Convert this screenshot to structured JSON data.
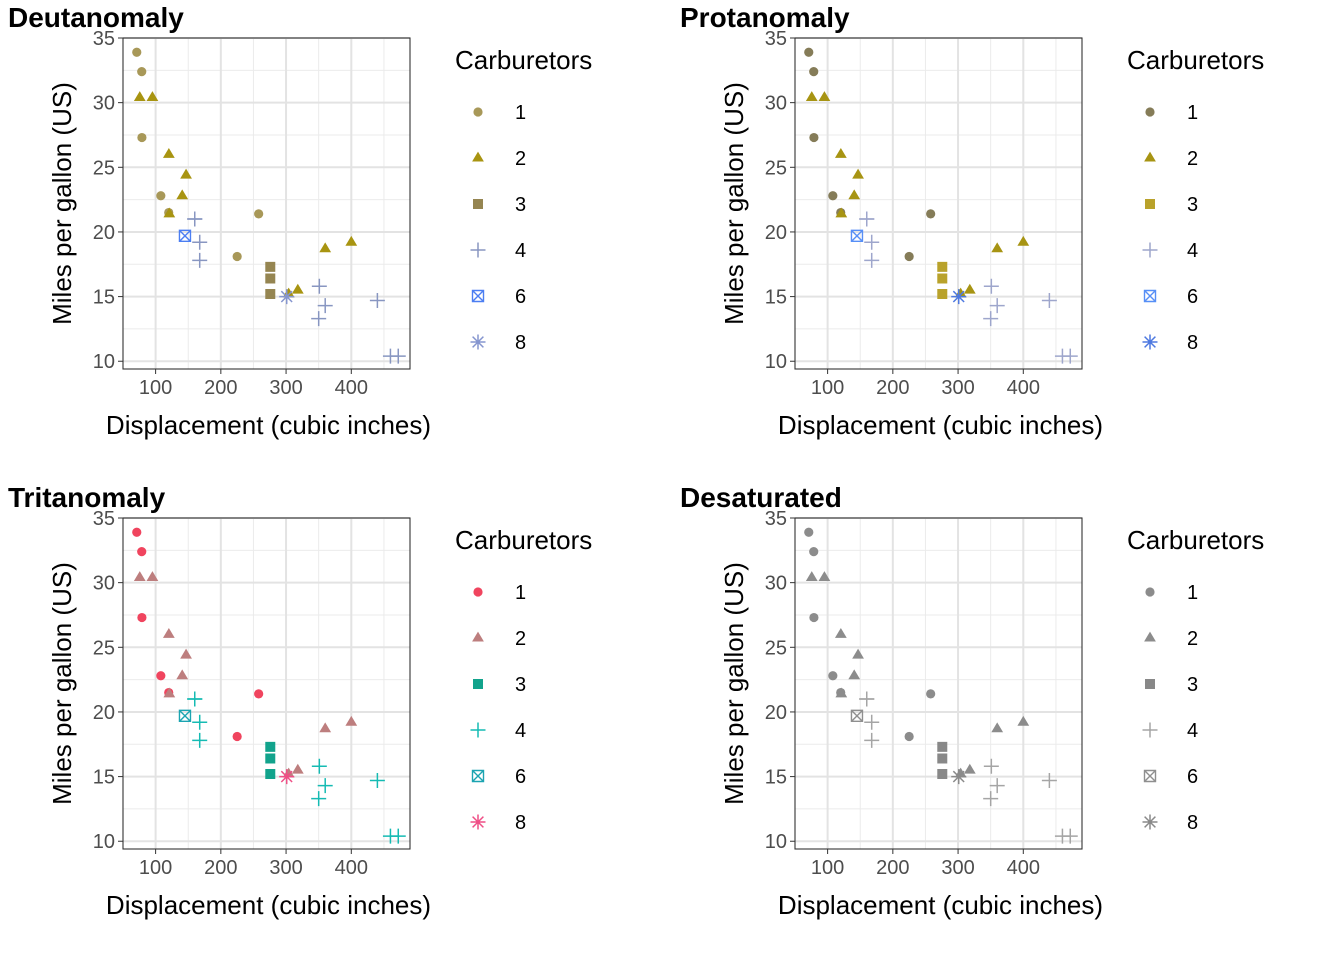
{
  "chart_data": {
    "type": "scatter",
    "xlabel": "Displacement (cubic inches)",
    "ylabel": "Miles per gallon (US)",
    "xlim": [
      50,
      490
    ],
    "ylim": [
      9.4,
      35
    ],
    "x_ticks": [
      "100",
      "200",
      "300",
      "400"
    ],
    "y_ticks": [
      "10",
      "15",
      "20",
      "25",
      "30",
      "35"
    ],
    "grid": true,
    "legend_position": "right",
    "legend_title": "Carburetors",
    "legend_items": [
      "1",
      "2",
      "3",
      "4",
      "6",
      "8"
    ],
    "shapes": {
      "1": "circle",
      "2": "triangle",
      "3": "square",
      "4": "plus",
      "6": "boxed-x",
      "8": "asterisk"
    },
    "points": [
      {
        "x": 160,
        "y": 21.0,
        "carb": "4"
      },
      {
        "x": 160,
        "y": 21.0,
        "carb": "4"
      },
      {
        "x": 108,
        "y": 22.8,
        "carb": "1"
      },
      {
        "x": 258,
        "y": 21.4,
        "carb": "1"
      },
      {
        "x": 360,
        "y": 18.7,
        "carb": "2"
      },
      {
        "x": 225,
        "y": 18.1,
        "carb": "1"
      },
      {
        "x": 360,
        "y": 14.3,
        "carb": "4"
      },
      {
        "x": 146.7,
        "y": 24.4,
        "carb": "2"
      },
      {
        "x": 140.8,
        "y": 22.8,
        "carb": "2"
      },
      {
        "x": 167.6,
        "y": 19.2,
        "carb": "4"
      },
      {
        "x": 167.6,
        "y": 17.8,
        "carb": "4"
      },
      {
        "x": 275.8,
        "y": 16.4,
        "carb": "3"
      },
      {
        "x": 275.8,
        "y": 17.3,
        "carb": "3"
      },
      {
        "x": 275.8,
        "y": 15.2,
        "carb": "3"
      },
      {
        "x": 472,
        "y": 10.4,
        "carb": "4"
      },
      {
        "x": 460,
        "y": 10.4,
        "carb": "4"
      },
      {
        "x": 440,
        "y": 14.7,
        "carb": "4"
      },
      {
        "x": 78.7,
        "y": 32.4,
        "carb": "1"
      },
      {
        "x": 75.7,
        "y": 30.4,
        "carb": "2"
      },
      {
        "x": 71.1,
        "y": 33.9,
        "carb": "1"
      },
      {
        "x": 120.1,
        "y": 21.5,
        "carb": "1"
      },
      {
        "x": 318,
        "y": 15.5,
        "carb": "2"
      },
      {
        "x": 304,
        "y": 15.2,
        "carb": "2"
      },
      {
        "x": 350,
        "y": 13.3,
        "carb": "4"
      },
      {
        "x": 400,
        "y": 19.2,
        "carb": "2"
      },
      {
        "x": 79,
        "y": 27.3,
        "carb": "1"
      },
      {
        "x": 120.3,
        "y": 26.0,
        "carb": "2"
      },
      {
        "x": 95.1,
        "y": 30.4,
        "carb": "2"
      },
      {
        "x": 351,
        "y": 15.8,
        "carb": "4"
      },
      {
        "x": 145,
        "y": 19.7,
        "carb": "6"
      },
      {
        "x": 301,
        "y": 15.0,
        "carb": "8"
      },
      {
        "x": 121,
        "y": 21.4,
        "carb": "2"
      }
    ],
    "panels": [
      {
        "title": "Deutanomaly",
        "colors": {
          "1": "#a89858",
          "2": "#a89411",
          "3": "#958551",
          "4": "#8896c1",
          "6": "#4b7ef2",
          "8": "#8595cf"
        }
      },
      {
        "title": "Protanomaly",
        "colors": {
          "1": "#857c58",
          "2": "#a79413",
          "3": "#b9a22b",
          "4": "#9ea6cc",
          "6": "#578ff6",
          "8": "#4e79e0"
        }
      },
      {
        "title": "Tritanomaly",
        "colors": {
          "1": "#f0445e",
          "2": "#bd7e7e",
          "3": "#12a38c",
          "4": "#15bbb3",
          "6": "#1ba4b1",
          "8": "#ef4f86"
        }
      },
      {
        "title": "Desaturated",
        "colors": {
          "1": "#8c8c8c",
          "2": "#8c8c8c",
          "3": "#888888",
          "4": "#a5a5a5",
          "6": "#8f8f8f",
          "8": "#8a8a8a"
        }
      }
    ]
  }
}
